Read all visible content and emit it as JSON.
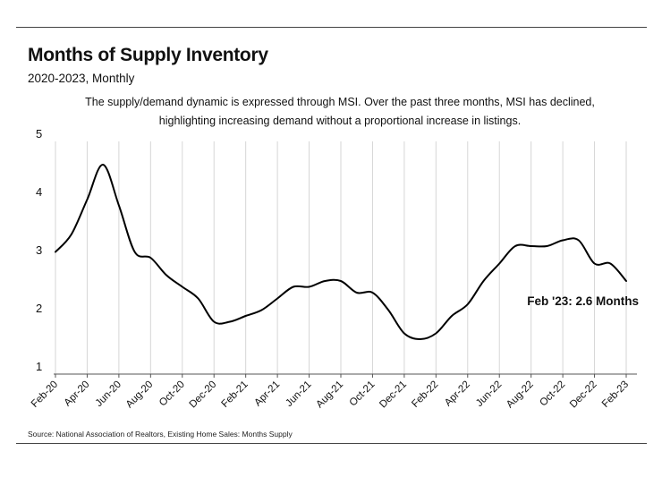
{
  "chart_data": {
    "type": "line",
    "title": "Months of Supply Inventory",
    "subtitle": "2020-2023, Monthly",
    "note_lines": [
      "The supply/demand dynamic is expressed through MSI. Over the past three months, MSI has declined,",
      "highlighting increasing demand without a proportional increase in listings."
    ],
    "source": "Source:  National Association of Realtors, Existing Home Sales: Months Supply",
    "annotation": "Feb '23: 2.6 Months",
    "ylim": [
      1,
      5
    ],
    "yticks": [
      "1",
      "2",
      "3",
      "4",
      "5"
    ],
    "grid": "vertical",
    "xticks": [
      "Feb-20",
      "Apr-20",
      "Jun-20",
      "Aug-20",
      "Oct-20",
      "Dec-20",
      "Feb-21",
      "Apr-21",
      "Jun-21",
      "Aug-21",
      "Oct-21",
      "Dec-21",
      "Feb-22",
      "Apr-22",
      "Jun-22",
      "Aug-22",
      "Oct-22",
      "Dec-22",
      "Feb-23"
    ],
    "x": [
      "Feb-20",
      "Mar-20",
      "Apr-20",
      "May-20",
      "Jun-20",
      "Jul-20",
      "Aug-20",
      "Sep-20",
      "Oct-20",
      "Nov-20",
      "Dec-20",
      "Jan-21",
      "Feb-21",
      "Mar-21",
      "Apr-21",
      "May-21",
      "Jun-21",
      "Jul-21",
      "Aug-21",
      "Sep-21",
      "Oct-21",
      "Nov-21",
      "Dec-21",
      "Jan-22",
      "Feb-22",
      "Mar-22",
      "Apr-22",
      "May-22",
      "Jun-22",
      "Jul-22",
      "Aug-22",
      "Sep-22",
      "Oct-22",
      "Nov-22",
      "Dec-22",
      "Jan-23",
      "Feb-23"
    ],
    "series": [
      {
        "values": [
          3.1,
          3.4,
          4.0,
          4.6,
          3.9,
          3.1,
          3.0,
          2.7,
          2.5,
          2.3,
          1.9,
          1.9,
          2.0,
          2.1,
          2.3,
          2.5,
          2.5,
          2.6,
          2.6,
          2.4,
          2.4,
          2.1,
          1.7,
          1.6,
          1.7,
          2.0,
          2.2,
          2.6,
          2.9,
          3.2,
          3.2,
          3.2,
          3.3,
          3.3,
          2.9,
          2.9,
          2.6
        ],
        "color": "#000000"
      }
    ]
  }
}
